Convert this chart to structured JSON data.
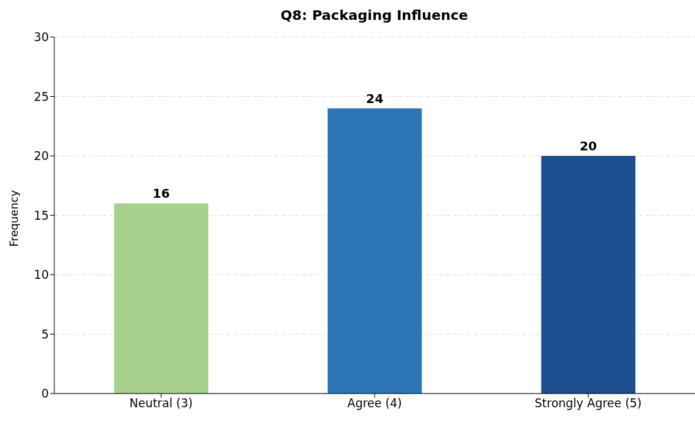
{
  "chart_data": {
    "type": "bar",
    "title": "Q8: Packaging Influence",
    "ylabel": "Frequency",
    "categories": [
      "Neutral (3)",
      "Agree (4)",
      "Strongly Agree (5)"
    ],
    "values": [
      16,
      24,
      20
    ],
    "colors": [
      "#a6d08b",
      "#2e75b6",
      "#1c4f8f"
    ],
    "ylim": [
      0,
      30
    ],
    "yticks": [
      0,
      5,
      10,
      15,
      20,
      25,
      30
    ],
    "grid": "y",
    "data_labels": true
  }
}
